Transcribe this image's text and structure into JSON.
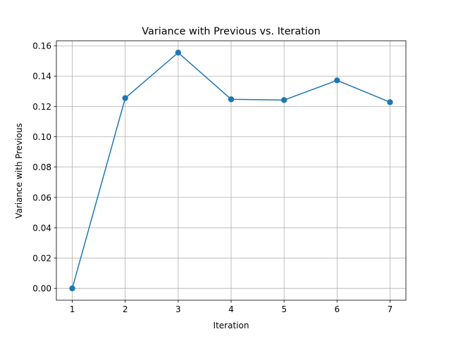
{
  "chart_data": {
    "type": "line",
    "title": "Variance with Previous vs. Iteration",
    "xlabel": "Iteration",
    "ylabel": "Variance with Previous",
    "x": [
      1,
      2,
      3,
      4,
      5,
      6,
      7
    ],
    "series": [
      {
        "values": [
          0.0,
          0.1255,
          0.1555,
          0.1247,
          0.1242,
          0.1372,
          0.1228
        ],
        "color": "#1f77b4",
        "marker": "circle"
      }
    ],
    "xlim": [
      0.7,
      7.3
    ],
    "ylim": [
      -0.0078,
      0.1633
    ],
    "xticks": [
      "1",
      "2",
      "3",
      "4",
      "5",
      "6",
      "7"
    ],
    "yticks": [
      "0.00",
      "0.02",
      "0.04",
      "0.06",
      "0.08",
      "0.10",
      "0.12",
      "0.14",
      "0.16"
    ],
    "grid": true
  }
}
